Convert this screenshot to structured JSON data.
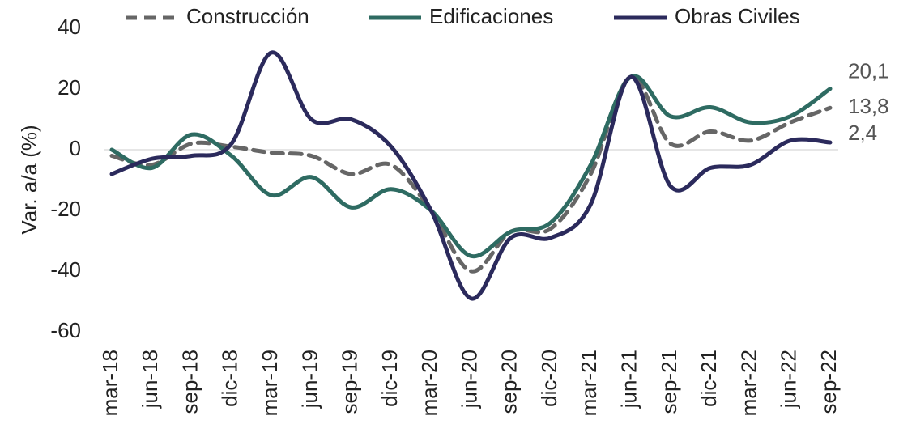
{
  "chart_data": {
    "type": "line",
    "y_label": "Var. a/a (%)",
    "categories": [
      "mar-18",
      "jun-18",
      "sep-18",
      "dic-18",
      "mar-19",
      "jun-19",
      "sep-19",
      "dic-19",
      "mar-20",
      "jun-20",
      "sep-20",
      "dic-20",
      "mar-21",
      "jun-21",
      "sep-21",
      "dic-21",
      "mar-22",
      "jun-22",
      "sep-22"
    ],
    "series": [
      {
        "name": "Construcción",
        "color": "#666666",
        "dashed": true,
        "values": [
          -2,
          -5,
          2,
          1,
          -1,
          -2,
          -8,
          -5,
          -20,
          -40,
          -27,
          -26,
          -8,
          24,
          2,
          6,
          3,
          9,
          13.8
        ],
        "value_labels": [
          null,
          null,
          null,
          null,
          null,
          null,
          null,
          null,
          null,
          null,
          null,
          null,
          null,
          null,
          null,
          null,
          null,
          null,
          "13,8"
        ]
      },
      {
        "name": "Edificaciones",
        "color": "#2e6b62",
        "values": [
          0,
          -6,
          5,
          -2,
          -15,
          -9,
          -19,
          -13,
          -20,
          -35,
          -27,
          -24,
          -5,
          24,
          11,
          14,
          9,
          11,
          20.1
        ],
        "value_labels": [
          null,
          null,
          null,
          null,
          null,
          null,
          null,
          null,
          null,
          null,
          null,
          null,
          null,
          null,
          null,
          null,
          null,
          null,
          "20,1"
        ]
      },
      {
        "name": "Obras Civiles",
        "color": "#2b2a5c",
        "values": [
          -8,
          -3,
          -2,
          2,
          32,
          10,
          10,
          1,
          -20,
          -49,
          -29,
          -29,
          -18,
          24,
          -12,
          -6,
          -5,
          3,
          2.4
        ],
        "value_labels": [
          null,
          null,
          null,
          null,
          null,
          null,
          null,
          null,
          null,
          null,
          null,
          null,
          null,
          null,
          null,
          null,
          null,
          null,
          "2,4"
        ]
      }
    ],
    "ylim": [
      -60,
      40
    ],
    "yticks": [
      -60,
      -40,
      -20,
      0,
      20,
      40
    ],
    "zero_line": true,
    "legend": "top"
  }
}
